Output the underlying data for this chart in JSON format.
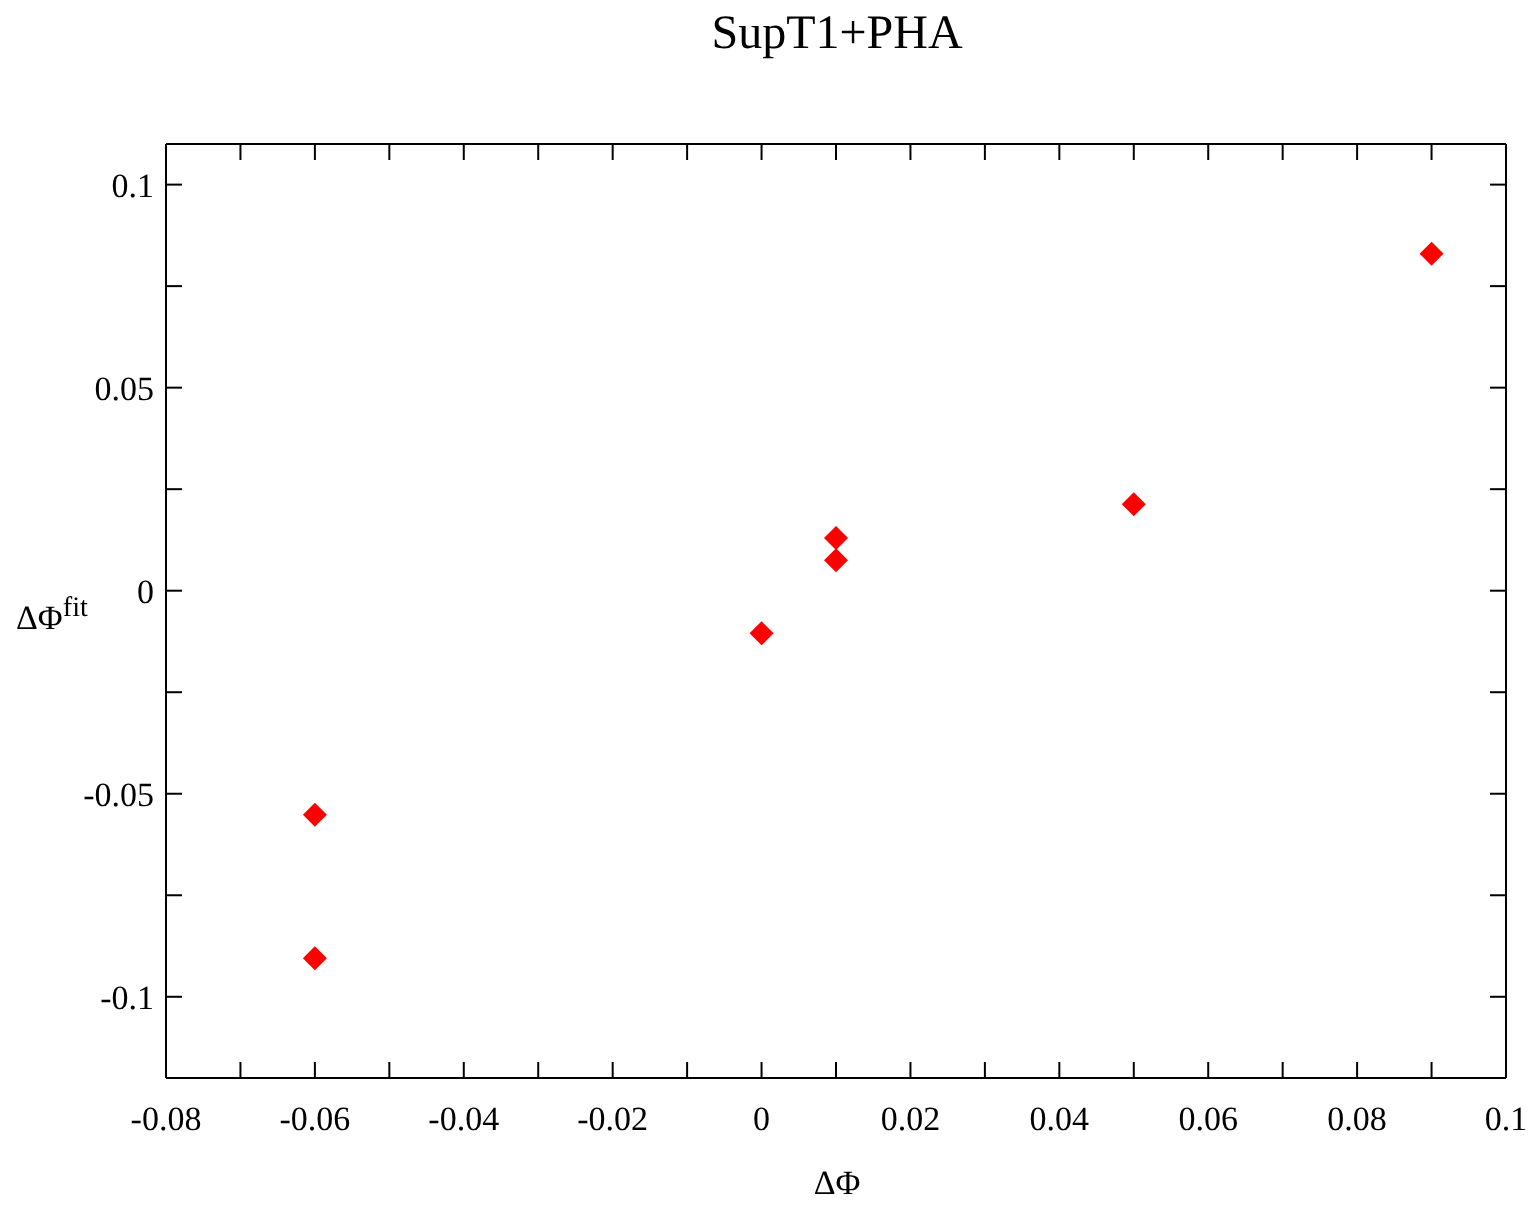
{
  "chart_data": {
    "type": "scatter",
    "title": "SupT1+PHA",
    "xlabel": "ΔΦ",
    "ylabel": "ΔΦ$^{fit}$",
    "x": [
      -0.06,
      -0.06,
      0,
      0.01,
      0.01,
      0.05,
      0.09
    ],
    "series": [
      {
        "color": "#ff0000",
        "values": [
          -0.0552,
          -0.0905,
          -0.0105,
          0.013,
          0.0075,
          0.0213,
          0.083
        ]
      }
    ],
    "marker": "diamond",
    "xlim": [
      -0.08,
      0.1
    ],
    "xticks": [
      -0.08,
      {
        "value": -0.07,
        "label": null
      },
      -0.06,
      {
        "value": -0.05,
        "label": null
      },
      -0.04,
      {
        "value": -0.03,
        "label": null
      },
      -0.02,
      {
        "value": -0.01,
        "label": null
      },
      0,
      {
        "value": 0.01,
        "label": null
      },
      0.02,
      {
        "value": 0.03,
        "label": null
      },
      0.04,
      {
        "value": 0.05,
        "label": null
      },
      0.06,
      {
        "value": 0.07,
        "label": null
      },
      0.08,
      {
        "value": 0.09,
        "label": null
      },
      0.1
    ],
    "ylim": [
      -0.12,
      0.11
    ],
    "yticks": [
      -0.1,
      {
        "value": -0.075,
        "label": null
      },
      -0.05,
      {
        "value": -0.025,
        "label": null
      },
      0,
      {
        "value": 0.025,
        "label": null
      },
      0.05,
      {
        "value": 0.075,
        "label": null
      },
      0.1
    ]
  }
}
